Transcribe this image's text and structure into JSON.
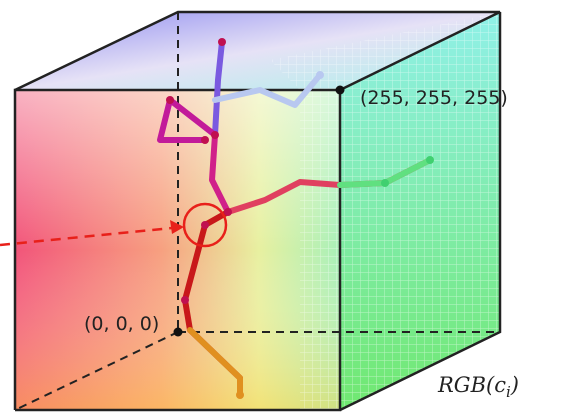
{
  "labels": {
    "white_corner": "(255, 255, 255)",
    "black_corner": "(0, 0, 0)",
    "color_function": {
      "name": "RGB(",
      "variable": "c",
      "subscript": "i",
      "close": ")"
    }
  }
}
